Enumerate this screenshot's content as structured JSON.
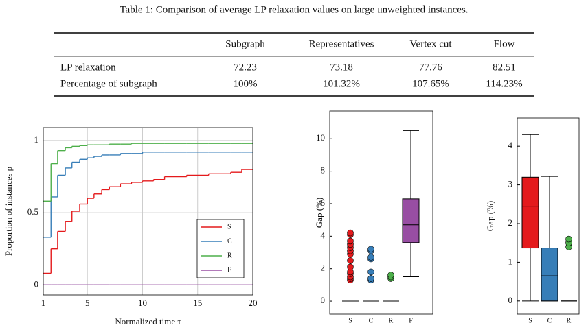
{
  "table": {
    "caption": "Table 1: Comparison of average LP relaxation values on large unweighted instances.",
    "header": [
      "Subgraph",
      "Representatives",
      "Vertex cut",
      "Flow"
    ],
    "rows": [
      [
        "LP relaxation",
        "72.23",
        "73.18",
        "77.76",
        "82.51"
      ],
      [
        "Percentage of subgraph",
        "100%",
        "101.32%",
        "107.65%",
        "114.23%"
      ]
    ]
  },
  "chart_data": [
    {
      "type": "step",
      "xlabel": "Normalized time τ",
      "ylabel": "Proportion of instances ρ",
      "xlim": [
        1,
        20
      ],
      "xticks": [
        1,
        5,
        10,
        15,
        20
      ],
      "ylim": [
        -0.07,
        1.09
      ],
      "yticks": [
        0,
        0.5,
        1
      ],
      "grid": true,
      "legend": "lower right",
      "x": [
        1,
        1.7,
        2.3,
        3,
        3.6,
        4.3,
        5,
        5.6,
        6.3,
        7,
        8,
        9,
        10,
        11,
        12,
        14,
        16,
        18,
        19
      ],
      "series": [
        {
          "name": "S",
          "color": "#e41a1c",
          "values": [
            0.08,
            0.25,
            0.37,
            0.44,
            0.51,
            0.56,
            0.6,
            0.63,
            0.66,
            0.68,
            0.7,
            0.71,
            0.72,
            0.73,
            0.75,
            0.76,
            0.77,
            0.78,
            0.8
          ]
        },
        {
          "name": "C",
          "color": "#377eb8",
          "values": [
            0.33,
            0.61,
            0.76,
            0.81,
            0.85,
            0.87,
            0.88,
            0.89,
            0.9,
            0.9,
            0.91,
            0.91,
            0.92,
            0.92,
            0.92,
            0.92,
            0.92,
            0.92,
            0.92
          ]
        },
        {
          "name": "R",
          "color": "#4daf4a",
          "values": [
            0.58,
            0.84,
            0.93,
            0.95,
            0.96,
            0.965,
            0.97,
            0.97,
            0.97,
            0.975,
            0.975,
            0.98,
            0.98,
            0.98,
            0.98,
            0.98,
            0.98,
            0.98,
            0.98
          ]
        },
        {
          "name": "F",
          "color": "#984ea3",
          "values": [
            0,
            0,
            0,
            0,
            0,
            0,
            0,
            0,
            0,
            0,
            0,
            0,
            0,
            0,
            0,
            0,
            0,
            0,
            0
          ]
        }
      ]
    },
    {
      "type": "box",
      "ylabel": "Gap (%)",
      "categories": [
        "S",
        "C",
        "R",
        "F"
      ],
      "ylim": [
        -0.8,
        11.7
      ],
      "yticks": [
        0,
        2,
        4,
        6,
        8,
        10
      ],
      "boxes": [
        {
          "color": "#e41a1c",
          "whislo": 0,
          "q1": 0,
          "med": 0,
          "q3": 0,
          "whishi": 0,
          "fliers": [
            1.3,
            1.4,
            1.5,
            1.7,
            1.8,
            2.1,
            2.5,
            2.9,
            3.1,
            3.3,
            3.5,
            3.7,
            4.1,
            4.2
          ]
        },
        {
          "color": "#377eb8",
          "whislo": 0,
          "q1": 0,
          "med": 0,
          "q3": 0,
          "whishi": 0,
          "fliers": [
            1.3,
            1.4,
            1.8,
            2.6,
            2.7,
            3.1,
            3.2
          ]
        },
        {
          "color": "#4daf4a",
          "whislo": 0,
          "q1": 0,
          "med": 0,
          "q3": 0,
          "whishi": 0,
          "fliers": [
            1.4,
            1.5,
            1.6
          ]
        },
        {
          "color": "#984ea3",
          "whislo": 1.5,
          "q1": 3.6,
          "med": 4.7,
          "q3": 6.3,
          "whishi": 10.5,
          "fliers": []
        }
      ]
    },
    {
      "type": "box",
      "ylabel": "Gap (%)",
      "categories": [
        "S",
        "C",
        "R"
      ],
      "ylim": [
        -0.34,
        4.73
      ],
      "yticks": [
        0,
        1,
        2,
        3,
        4
      ],
      "boxes": [
        {
          "color": "#e41a1c",
          "whislo": 0,
          "q1": 1.37,
          "med": 2.45,
          "q3": 3.2,
          "whishi": 4.3,
          "fliers": []
        },
        {
          "color": "#377eb8",
          "whislo": 0,
          "q1": 0,
          "med": 0.65,
          "q3": 1.37,
          "whishi": 3.22,
          "fliers": []
        },
        {
          "color": "#4daf4a",
          "whislo": 0,
          "q1": 0,
          "med": 0,
          "q3": 0,
          "whishi": 0,
          "fliers": [
            1.4,
            1.5,
            1.6
          ]
        }
      ]
    }
  ]
}
